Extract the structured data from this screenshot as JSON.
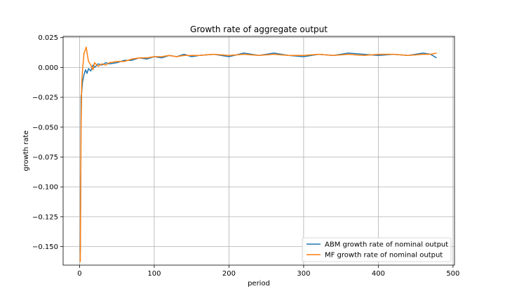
{
  "chart_data": {
    "type": "line",
    "title": "Growth rate of aggregate output",
    "xlabel": "period",
    "ylabel": "growth rate",
    "xlim": [
      -22,
      502
    ],
    "ylim": [
      -0.1655,
      0.026
    ],
    "xticks": [
      0,
      100,
      200,
      300,
      400,
      500
    ],
    "yticks": [
      0.025,
      0.0,
      -0.025,
      -0.05,
      -0.075,
      -0.1,
      -0.125,
      -0.15
    ],
    "xtick_labels": [
      "0",
      "100",
      "200",
      "300",
      "400",
      "500"
    ],
    "ytick_labels": [
      "0.025",
      "0.000",
      "−0.025",
      "−0.050",
      "−0.075",
      "−0.100",
      "−0.125",
      "−0.150"
    ],
    "grid": true,
    "legend_position": "lower-right",
    "series": [
      {
        "name": "ABM growth rate of nominal output",
        "color": "#1f77b4",
        "x": [
          1,
          2,
          3,
          4,
          6,
          8,
          10,
          12,
          15,
          18,
          20,
          25,
          30,
          35,
          40,
          50,
          60,
          70,
          80,
          90,
          100,
          110,
          120,
          130,
          140,
          150,
          160,
          180,
          200,
          220,
          240,
          260,
          280,
          300,
          320,
          340,
          360,
          380,
          400,
          420,
          440,
          460,
          470,
          478
        ],
        "values": [
          -0.155,
          -0.025,
          -0.02,
          -0.012,
          -0.006,
          -0.002,
          -0.005,
          -0.001,
          -0.003,
          0.002,
          0.0,
          0.003,
          0.002,
          0.004,
          0.003,
          0.004,
          0.006,
          0.006,
          0.008,
          0.007,
          0.009,
          0.008,
          0.01,
          0.009,
          0.011,
          0.009,
          0.01,
          0.011,
          0.009,
          0.012,
          0.01,
          0.012,
          0.01,
          0.009,
          0.011,
          0.01,
          0.012,
          0.011,
          0.01,
          0.011,
          0.01,
          0.012,
          0.011,
          0.008
        ]
      },
      {
        "name": "MF growth rate of nominal output",
        "color": "#ff7f0e",
        "x": [
          1,
          2,
          3,
          4,
          6,
          8,
          9,
          10,
          12,
          15,
          18,
          20,
          25,
          30,
          35,
          40,
          50,
          60,
          70,
          80,
          90,
          100,
          110,
          120,
          130,
          140,
          150,
          160,
          180,
          200,
          220,
          240,
          260,
          280,
          300,
          320,
          340,
          360,
          380,
          400,
          420,
          440,
          460,
          470,
          478
        ],
        "values": [
          -0.163,
          -0.05,
          -0.012,
          -0.002,
          0.012,
          0.015,
          0.017,
          0.012,
          0.005,
          0.002,
          -0.002,
          0.004,
          0.001,
          0.003,
          0.002,
          0.004,
          0.005,
          0.005,
          0.007,
          0.008,
          0.008,
          0.009,
          0.009,
          0.01,
          0.009,
          0.01,
          0.01,
          0.01,
          0.011,
          0.01,
          0.011,
          0.01,
          0.011,
          0.01,
          0.01,
          0.011,
          0.01,
          0.011,
          0.01,
          0.011,
          0.011,
          0.01,
          0.011,
          0.011,
          0.012
        ]
      }
    ]
  }
}
